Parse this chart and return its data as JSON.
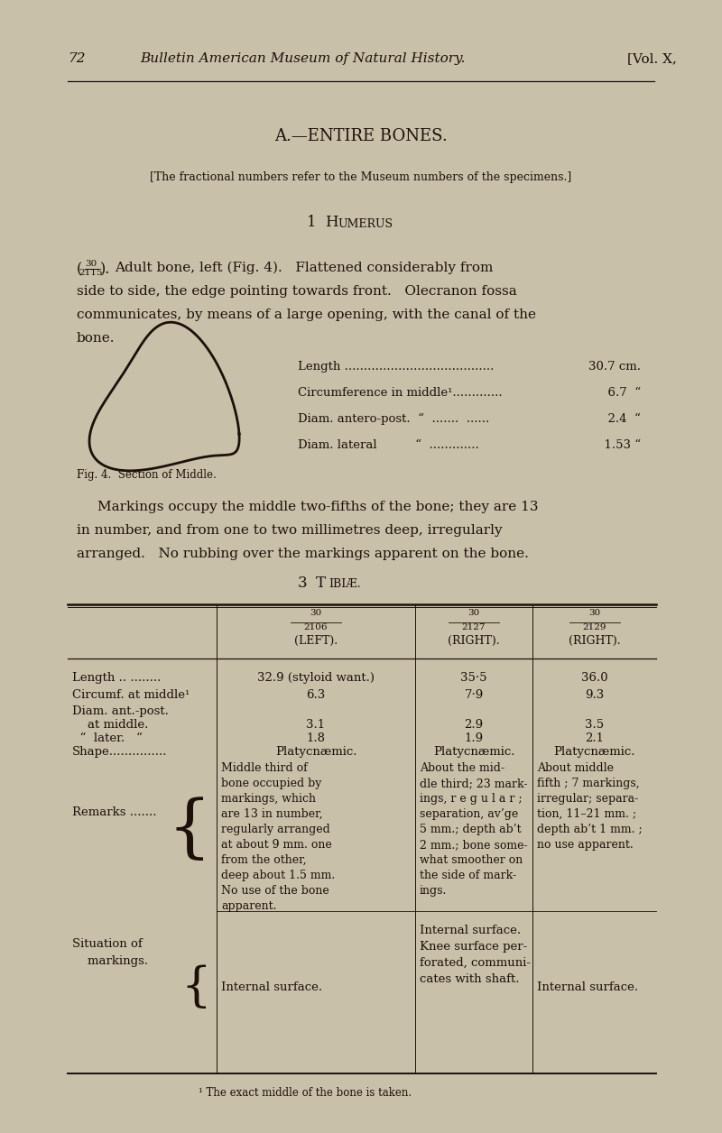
{
  "bg_color": "#c9c0aa",
  "page_width": 8.0,
  "page_height": 12.56,
  "header_page_num": "72",
  "header_title": "Bulletin American Museum of Natural History.",
  "header_vol": "[Vol. X,",
  "section_title": "A.—ENTIRE BONES.",
  "museum_note": "[The fractional numbers refer to the Museum numbers of the specimens.]",
  "humerus_numeral": "1",
  "humerus_H": "H",
  "humerus_UMERUS": "UMERUS",
  "frac_num": "30",
  "frac_den": "2115",
  "para1_line1": "Adult bone, left (Fig. 4).   Flattened considerably from",
  "para1_line2": "side to side, the edge pointing towards front.   Olecranon fossa",
  "para1_line3": "communicates, by means of a large opening, with the canal of the",
  "para1_line4": "bone.",
  "meas": [
    [
      "Length .......................................",
      "30.7 cm."
    ],
    [
      "Circumference in middle¹.............",
      "  6.7  “"
    ],
    [
      "Diam. antero-post.  “  .......  ......",
      "  2.4  “"
    ],
    [
      "Diam. lateral          “  .............",
      "  1.53 “"
    ]
  ],
  "fig_caption": "Fig. 4.  Section of Middle.",
  "para2_line1": "Markings occupy the middle two-fifths of the bone; they are 13",
  "para2_line2": "in number, and from one to two millimetres deep, irregularly",
  "para2_line3": "arranged.   No rubbing over the markings apparent on the bone.",
  "tibiae_numeral": "3",
  "tibiae_T": "T",
  "tibiae_IBIAE": "IBIÆ.",
  "col1_num": "30",
  "col1_den": "2106",
  "col1_label": "(LEFT).",
  "col2_num": "30",
  "col2_den": "2127",
  "col2_label": "(RIGHT).",
  "col3_num": "30",
  "col3_den": "2129",
  "col3_label": "(RIGHT).",
  "table_rows": [
    [
      "Length .. ........",
      "32.9 (styloid want.)",
      "35·5",
      "36.0"
    ],
    [
      "Circumf. at middle¹",
      "6.3",
      "7·9",
      "9.3"
    ],
    [
      "Diam. ant.-post.",
      "",
      "",
      ""
    ],
    [
      "    at middle.",
      "3.1",
      "2.9",
      "3.5"
    ],
    [
      "  “  later.   “",
      "1.8",
      "1.9",
      "2.1"
    ],
    [
      "Shape...............",
      "Platycnæmic.",
      "Platycnæmic.",
      "Platycnæmic."
    ]
  ],
  "remarks_label": "Remarks .......",
  "remarks_col1": [
    "Middle third of",
    "bone occupied by",
    "markings, which",
    "are 13 in number,",
    "regularly arranged",
    "at about 9 mm. one",
    "from the other,",
    "deep about 1.5 mm.",
    "No use of the bone",
    "apparent."
  ],
  "remarks_col2": [
    "About the mid-",
    "dle third; 23 mark-",
    "ings, r e g u l a r ;",
    "separation, av’ge",
    "5 mm.; depth ab’t",
    "2 mm.; bone some-",
    "what smoother on",
    "the side of mark-",
    "ings."
  ],
  "remarks_col3": [
    "About middle",
    "fifth ; 7 markings,",
    "irregular; separa-",
    "tion, 11–21 mm. ;",
    "depth ab’t 1 mm. ;",
    "no use apparent."
  ],
  "situation_label1": "Situation of",
  "situation_label2": "    markings.",
  "situation_col1": "Internal surface.",
  "situation_col2": [
    "Internal surface.",
    "Knee surface per-",
    "forated, communi-",
    "cates with shaft."
  ],
  "situation_col3": "Internal surface.",
  "footnote": "¹ The exact middle of the bone is taken.",
  "text_color": "#1c1008"
}
